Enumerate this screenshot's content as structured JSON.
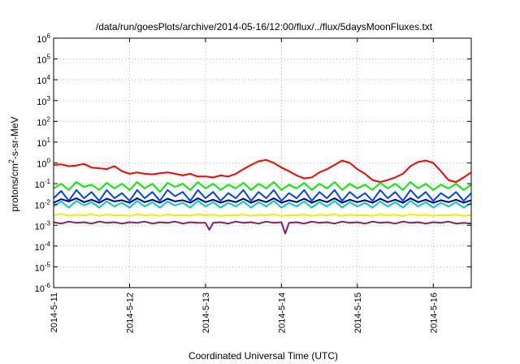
{
  "chart_data": {
    "type": "line",
    "title": "/data/run/goesPlots/archive/2014-05-16/12:00/flux/../flux/5daysMoonFluxes.txt",
    "xlabel": "Coordinated Universal Time (UTC)",
    "ylabel": "protons/cm2-s-sr-MeV",
    "ylabel_parts": {
      "base": "protons/cm",
      "sup": "2",
      "rest": "-s-sr-MeV"
    },
    "y_scale": "log",
    "ylim": [
      1e-06,
      1000000.0
    ],
    "xlim": [
      0,
      5.5
    ],
    "grid": true,
    "legend": "none",
    "x_ticks": [
      {
        "value": 0,
        "label": "2014-5-11"
      },
      {
        "value": 1,
        "label": "2014-5-12"
      },
      {
        "value": 2,
        "label": "2014-5-13"
      },
      {
        "value": 3,
        "label": "2014-5-14"
      },
      {
        "value": 4,
        "label": "2014-5-15"
      },
      {
        "value": 5,
        "label": "2014-5-16"
      }
    ],
    "y_ticks": [
      {
        "exp": 6,
        "base": "10",
        "sup": "6"
      },
      {
        "exp": 5,
        "base": "10",
        "sup": "5"
      },
      {
        "exp": 4,
        "base": "10",
        "sup": "4"
      },
      {
        "exp": 3,
        "base": "10",
        "sup": "3"
      },
      {
        "exp": 2,
        "base": "10",
        "sup": "2"
      },
      {
        "exp": 1,
        "base": "10",
        "sup": "1"
      },
      {
        "exp": 0,
        "base": "10",
        "sup": "0"
      },
      {
        "exp": -1,
        "base": "10",
        "sup": "-1"
      },
      {
        "exp": -2,
        "base": "10",
        "sup": "-2"
      },
      {
        "exp": -3,
        "base": "10",
        "sup": "-3"
      },
      {
        "exp": -4,
        "base": "10",
        "sup": "-4"
      },
      {
        "exp": -5,
        "base": "10",
        "sup": "-5"
      },
      {
        "exp": -6,
        "base": "10",
        "sup": "-6"
      }
    ],
    "series": [
      {
        "color": "#ff0000",
        "x": [
          0,
          0.1,
          0.2,
          0.3,
          0.4,
          0.5,
          0.6,
          0.7,
          0.8,
          0.9,
          1,
          1.1,
          1.2,
          1.3,
          1.4,
          1.5,
          1.6,
          1.7,
          1.8,
          1.9,
          2,
          2.1,
          2.2,
          2.3,
          2.4,
          2.5,
          2.6,
          2.7,
          2.8,
          2.9,
          3,
          3.1,
          3.2,
          3.3,
          3.4,
          3.5,
          3.6,
          3.7,
          3.8,
          3.9,
          4,
          4.1,
          4.2,
          4.3,
          4.4,
          4.5,
          4.6,
          4.7,
          4.8,
          4.9,
          5,
          5.1,
          5.2,
          5.3,
          5.4,
          5.5
        ],
        "values": [
          0.8,
          0.85,
          0.7,
          0.75,
          0.9,
          0.6,
          0.55,
          0.5,
          0.7,
          0.4,
          0.3,
          0.35,
          0.3,
          0.28,
          0.32,
          0.35,
          0.3,
          0.25,
          0.3,
          0.22,
          0.22,
          0.2,
          0.25,
          0.22,
          0.3,
          0.5,
          0.8,
          1.2,
          1.4,
          1.0,
          0.6,
          0.4,
          0.25,
          0.18,
          0.2,
          0.35,
          0.5,
          0.8,
          1.3,
          1.0,
          0.5,
          0.3,
          0.15,
          0.12,
          0.15,
          0.2,
          0.3,
          0.7,
          1.1,
          1.3,
          1.0,
          0.4,
          0.15,
          0.12,
          0.2,
          0.35
        ]
      },
      {
        "color": "#00ee00",
        "x": [
          0,
          0.1,
          0.2,
          0.3,
          0.4,
          0.5,
          0.6,
          0.7,
          0.8,
          0.9,
          1,
          1.1,
          1.2,
          1.3,
          1.4,
          1.5,
          1.6,
          1.7,
          1.8,
          1.9,
          2,
          2.1,
          2.2,
          2.3,
          2.4,
          2.5,
          2.6,
          2.7,
          2.8,
          2.9,
          3,
          3.1,
          3.2,
          3.3,
          3.4,
          3.5,
          3.6,
          3.7,
          3.8,
          3.9,
          4,
          4.1,
          4.2,
          4.3,
          4.4,
          4.5,
          4.6,
          4.7,
          4.8,
          4.9,
          5,
          5.1,
          5.2,
          5.3,
          5.4,
          5.5
        ],
        "values": [
          0.06,
          0.1,
          0.05,
          0.12,
          0.07,
          0.09,
          0.05,
          0.11,
          0.06,
          0.1,
          0.05,
          0.12,
          0.06,
          0.1,
          0.04,
          0.11,
          0.07,
          0.1,
          0.05,
          0.12,
          0.06,
          0.1,
          0.05,
          0.09,
          0.06,
          0.11,
          0.05,
          0.1,
          0.06,
          0.12,
          0.05,
          0.09,
          0.06,
          0.11,
          0.05,
          0.1,
          0.06,
          0.12,
          0.05,
          0.1,
          0.06,
          0.09,
          0.05,
          0.11,
          0.06,
          0.1,
          0.05,
          0.12,
          0.06,
          0.1,
          0.05,
          0.09,
          0.06,
          0.1,
          0.05,
          0.09
        ]
      },
      {
        "color": "#00cccc",
        "x": [
          0,
          0.1,
          0.2,
          0.3,
          0.4,
          0.5,
          0.6,
          0.7,
          0.8,
          0.9,
          1,
          1.1,
          1.2,
          1.3,
          1.4,
          1.5,
          1.6,
          1.7,
          1.8,
          1.9,
          2,
          2.1,
          2.2,
          2.3,
          2.4,
          2.5,
          2.6,
          2.7,
          2.8,
          2.9,
          3,
          3.1,
          3.2,
          3.3,
          3.4,
          3.5,
          3.6,
          3.7,
          3.8,
          3.9,
          4,
          4.1,
          4.2,
          4.3,
          4.4,
          4.5,
          4.6,
          4.7,
          4.8,
          4.9,
          5,
          5.1,
          5.2,
          5.3,
          5.4,
          5.5
        ],
        "values": [
          0.008,
          0.014,
          0.007,
          0.015,
          0.009,
          0.013,
          0.007,
          0.014,
          0.008,
          0.012,
          0.007,
          0.015,
          0.008,
          0.013,
          0.007,
          0.014,
          0.009,
          0.012,
          0.007,
          0.015,
          0.008,
          0.013,
          0.007,
          0.012,
          0.008,
          0.014,
          0.007,
          0.013,
          0.008,
          0.015,
          0.007,
          0.012,
          0.008,
          0.014,
          0.007,
          0.013,
          0.008,
          0.015,
          0.007,
          0.013,
          0.008,
          0.012,
          0.007,
          0.014,
          0.008,
          0.013,
          0.007,
          0.015,
          0.008,
          0.013,
          0.007,
          0.012,
          0.008,
          0.013,
          0.007,
          0.012
        ]
      },
      {
        "color": "#0044ff",
        "x": [
          0,
          0.1,
          0.2,
          0.3,
          0.4,
          0.5,
          0.6,
          0.7,
          0.8,
          0.9,
          1,
          1.1,
          1.2,
          1.3,
          1.4,
          1.5,
          1.6,
          1.7,
          1.8,
          1.9,
          2,
          2.1,
          2.2,
          2.3,
          2.4,
          2.5,
          2.6,
          2.7,
          2.8,
          2.9,
          3,
          3.1,
          3.2,
          3.3,
          3.4,
          3.5,
          3.6,
          3.7,
          3.8,
          3.9,
          4,
          4.1,
          4.2,
          4.3,
          4.4,
          4.5,
          4.6,
          4.7,
          4.8,
          4.9,
          5,
          5.1,
          5.2,
          5.3,
          5.4,
          5.5
        ],
        "values": [
          0.02,
          0.045,
          0.015,
          0.05,
          0.02,
          0.04,
          0.015,
          0.05,
          0.02,
          0.035,
          0.015,
          0.05,
          0.02,
          0.04,
          0.015,
          0.05,
          0.025,
          0.04,
          0.015,
          0.05,
          0.02,
          0.04,
          0.015,
          0.035,
          0.02,
          0.05,
          0.015,
          0.04,
          0.02,
          0.05,
          0.015,
          0.035,
          0.02,
          0.05,
          0.015,
          0.04,
          0.02,
          0.05,
          0.015,
          0.04,
          0.02,
          0.035,
          0.015,
          0.05,
          0.02,
          0.04,
          0.015,
          0.05,
          0.02,
          0.04,
          0.015,
          0.035,
          0.02,
          0.04,
          0.015,
          0.035
        ]
      },
      {
        "color": "#00008b",
        "x": [
          0,
          0.1,
          0.2,
          0.3,
          0.4,
          0.5,
          0.6,
          0.7,
          0.8,
          0.9,
          1,
          1.1,
          1.2,
          1.3,
          1.4,
          1.5,
          1.6,
          1.7,
          1.8,
          1.9,
          2,
          2.1,
          2.2,
          2.3,
          2.4,
          2.5,
          2.6,
          2.7,
          2.8,
          2.9,
          3,
          3.1,
          3.2,
          3.3,
          3.4,
          3.5,
          3.6,
          3.7,
          3.8,
          3.9,
          4,
          4.1,
          4.2,
          4.3,
          4.4,
          4.5,
          4.6,
          4.7,
          4.8,
          4.9,
          5,
          5.1,
          5.2,
          5.3,
          5.4,
          5.5
        ],
        "values": [
          0.012,
          0.018,
          0.014,
          0.02,
          0.013,
          0.017,
          0.012,
          0.019,
          0.014,
          0.016,
          0.012,
          0.02,
          0.013,
          0.017,
          0.012,
          0.019,
          0.014,
          0.016,
          0.012,
          0.02,
          0.013,
          0.017,
          0.012,
          0.016,
          0.013,
          0.019,
          0.012,
          0.017,
          0.013,
          0.02,
          0.012,
          0.016,
          0.013,
          0.019,
          0.012,
          0.017,
          0.013,
          0.02,
          0.012,
          0.017,
          0.013,
          0.016,
          0.012,
          0.019,
          0.013,
          0.017,
          0.012,
          0.02,
          0.013,
          0.017,
          0.012,
          0.016,
          0.013,
          0.017,
          0.012,
          0.016
        ]
      },
      {
        "color": "#eeee00",
        "x": [
          0,
          0.1,
          0.2,
          0.3,
          0.4,
          0.5,
          0.6,
          0.7,
          0.8,
          0.9,
          1,
          1.1,
          1.2,
          1.3,
          1.4,
          1.5,
          1.6,
          1.7,
          1.8,
          1.9,
          2,
          2.1,
          2.2,
          2.3,
          2.4,
          2.5,
          2.6,
          2.7,
          2.8,
          2.9,
          3,
          3.1,
          3.2,
          3.3,
          3.4,
          3.5,
          3.6,
          3.7,
          3.8,
          3.9,
          4,
          4.1,
          4.2,
          4.3,
          4.4,
          4.5,
          4.6,
          4.7,
          4.8,
          4.9,
          5,
          5.1,
          5.2,
          5.3,
          5.4,
          5.5
        ],
        "values": [
          0.003,
          0.0035,
          0.0028,
          0.0032,
          0.003,
          0.0034,
          0.0028,
          0.0033,
          0.003,
          0.0031,
          0.0028,
          0.0034,
          0.003,
          0.0032,
          0.0028,
          0.0033,
          0.003,
          0.0031,
          0.0029,
          0.0034,
          0.003,
          0.0032,
          0.0028,
          0.0031,
          0.003,
          0.0033,
          0.0028,
          0.0032,
          0.003,
          0.0034,
          0.0028,
          0.0031,
          0.003,
          0.0033,
          0.0028,
          0.0032,
          0.003,
          0.0034,
          0.0028,
          0.0032,
          0.003,
          0.0031,
          0.0028,
          0.0033,
          0.003,
          0.0032,
          0.0028,
          0.0034,
          0.003,
          0.0032,
          0.0028,
          0.0031,
          0.003,
          0.0032,
          0.0028,
          0.0031
        ]
      },
      {
        "color": "#8b1a6b",
        "x": [
          0,
          0.1,
          0.2,
          0.3,
          0.4,
          0.5,
          0.6,
          0.7,
          0.8,
          0.9,
          1,
          1.1,
          1.2,
          1.3,
          1.4,
          1.5,
          1.6,
          1.7,
          1.8,
          1.9,
          2,
          2.05,
          2.1,
          2.2,
          2.3,
          2.4,
          2.5,
          2.6,
          2.7,
          2.8,
          2.9,
          3,
          3.05,
          3.1,
          3.2,
          3.3,
          3.4,
          3.5,
          3.6,
          3.7,
          3.8,
          3.9,
          4,
          4.1,
          4.2,
          4.3,
          4.4,
          4.5,
          4.6,
          4.7,
          4.8,
          4.9,
          5,
          5.1,
          5.2,
          5.3,
          5.4,
          5.5
        ],
        "values": [
          0.0014,
          0.0012,
          0.0015,
          0.0013,
          0.0014,
          0.0012,
          0.0015,
          0.0013,
          0.0014,
          0.0012,
          0.0014,
          0.0013,
          0.0015,
          0.0012,
          0.0014,
          0.0013,
          0.0015,
          0.0012,
          0.0014,
          0.0013,
          0.0013,
          0.0006,
          0.0013,
          0.0014,
          0.0012,
          0.0015,
          0.0013,
          0.0014,
          0.0012,
          0.0015,
          0.0013,
          0.0014,
          0.0004,
          0.0013,
          0.0014,
          0.0012,
          0.0015,
          0.0013,
          0.0014,
          0.0012,
          0.0015,
          0.0013,
          0.0014,
          0.0012,
          0.0015,
          0.0013,
          0.0014,
          0.0012,
          0.0015,
          0.0013,
          0.0014,
          0.0012,
          0.0014,
          0.0013,
          0.0015,
          0.0012,
          0.0013,
          0.0012
        ]
      }
    ]
  }
}
